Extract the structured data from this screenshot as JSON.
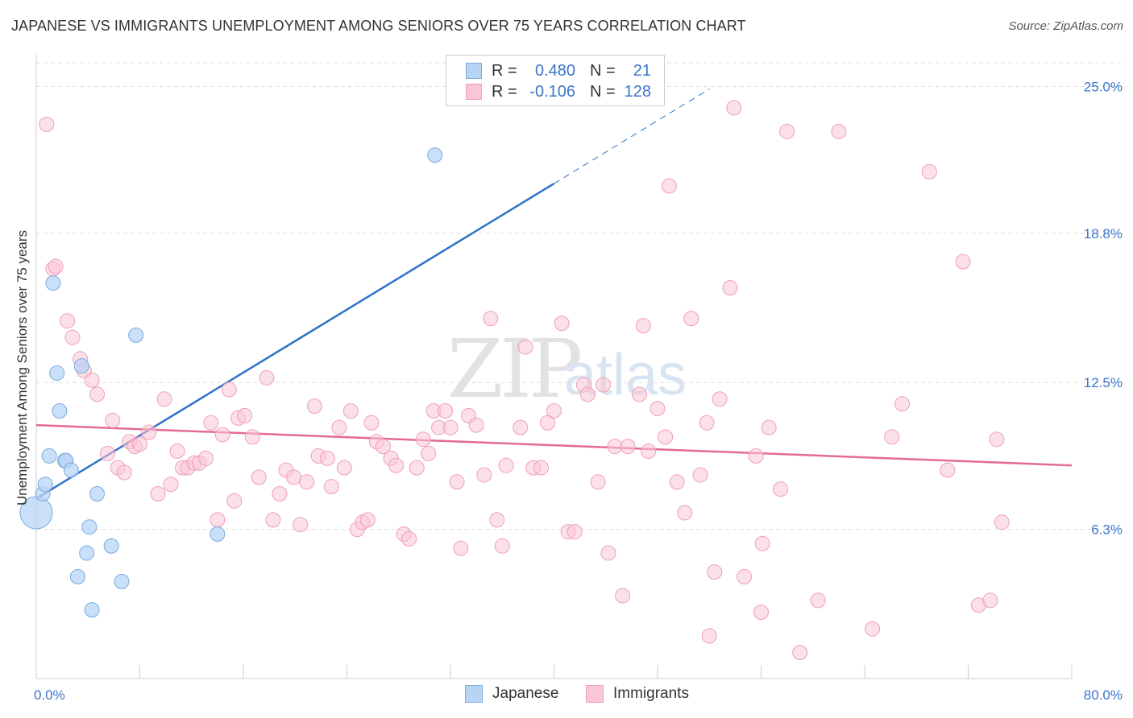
{
  "header": {
    "title": "JAPANESE VS IMMIGRANTS UNEMPLOYMENT AMONG SENIORS OVER 75 YEARS CORRELATION CHART",
    "source": "Source: ZipAtlas.com"
  },
  "watermark": {
    "zip": "ZIP",
    "atlas": "atlas"
  },
  "legend": {
    "rows": [
      {
        "r_label": "R =",
        "r_value": "0.480",
        "n_label": "N =",
        "n_value": "21"
      },
      {
        "r_label": "R =",
        "r_value": "-0.106",
        "n_label": "N =",
        "n_value": "128"
      }
    ]
  },
  "bottom_legend": {
    "japanese": "Japanese",
    "immigrants": "Immigrants"
  },
  "colors": {
    "japanese_fill": "#b8d4f5",
    "japanese_stroke": "#7aaae0",
    "japanese_line": "#2f72c9",
    "immigrants_fill": "#f9c6d5",
    "immigrants_stroke": "#ef9fb8",
    "immigrants_line": "#e46a95",
    "grid": "#dddddd",
    "tick_text": "#3b74c9"
  },
  "chart_data": {
    "type": "scatter",
    "title": "JAPANESE VS IMMIGRANTS UNEMPLOYMENT AMONG SENIORS OVER 75 YEARS CORRELATION CHART",
    "xlabel": "",
    "ylabel": "Unemployment Among Seniors over 75 years",
    "xlim": [
      0,
      80
    ],
    "ylim": [
      0,
      26
    ],
    "x_tick_labels": [
      "0.0%",
      "80.0%"
    ],
    "y_ticks": [
      25.0,
      18.8,
      12.5,
      6.3
    ],
    "y_tick_labels": [
      "25.0%",
      "18.8%",
      "12.5%",
      "6.3%"
    ],
    "grid": true,
    "series": [
      {
        "name": "Japanese",
        "r": 0.48,
        "n": 21,
        "trend": {
          "x0": 0,
          "y0": 7.6,
          "x1": 40,
          "y1": 20.9,
          "dash_to_x": 52
        },
        "points": [
          [
            0.0,
            7.0
          ],
          [
            0.5,
            7.8
          ],
          [
            0.7,
            8.2
          ],
          [
            1.0,
            9.4
          ],
          [
            1.3,
            16.7
          ],
          [
            1.6,
            12.9
          ],
          [
            1.8,
            11.3
          ],
          [
            2.2,
            9.2
          ],
          [
            2.3,
            9.2
          ],
          [
            2.7,
            8.8
          ],
          [
            3.2,
            4.3
          ],
          [
            3.5,
            13.2
          ],
          [
            3.9,
            5.3
          ],
          [
            4.1,
            6.4
          ],
          [
            4.3,
            2.9
          ],
          [
            4.7,
            7.8
          ],
          [
            5.8,
            5.6
          ],
          [
            6.6,
            4.1
          ],
          [
            7.7,
            14.5
          ],
          [
            14.0,
            6.1
          ],
          [
            30.8,
            22.1
          ]
        ]
      },
      {
        "name": "Immigrants",
        "r": -0.106,
        "n": 128,
        "trend": {
          "x0": 0,
          "y0": 10.7,
          "x1": 80,
          "y1": 9.0
        },
        "points": [
          [
            0.8,
            23.4
          ],
          [
            1.3,
            17.3
          ],
          [
            1.5,
            17.4
          ],
          [
            2.4,
            15.1
          ],
          [
            2.8,
            14.4
          ],
          [
            3.4,
            13.5
          ],
          [
            3.7,
            13.0
          ],
          [
            4.3,
            12.6
          ],
          [
            4.7,
            12.0
          ],
          [
            5.9,
            10.9
          ],
          [
            5.5,
            9.5
          ],
          [
            6.3,
            8.9
          ],
          [
            6.8,
            8.7
          ],
          [
            7.2,
            10.0
          ],
          [
            7.6,
            9.8
          ],
          [
            8.0,
            9.9
          ],
          [
            8.7,
            10.4
          ],
          [
            9.4,
            7.8
          ],
          [
            9.9,
            11.8
          ],
          [
            10.4,
            8.2
          ],
          [
            10.9,
            9.6
          ],
          [
            11.3,
            8.9
          ],
          [
            11.7,
            8.9
          ],
          [
            12.2,
            9.1
          ],
          [
            12.6,
            9.1
          ],
          [
            13.1,
            9.3
          ],
          [
            13.5,
            10.8
          ],
          [
            14.0,
            6.7
          ],
          [
            14.4,
            10.3
          ],
          [
            14.9,
            12.2
          ],
          [
            15.3,
            7.5
          ],
          [
            15.6,
            11.0
          ],
          [
            16.1,
            11.1
          ],
          [
            16.7,
            10.2
          ],
          [
            17.2,
            8.5
          ],
          [
            17.8,
            12.7
          ],
          [
            18.3,
            6.7
          ],
          [
            18.8,
            7.8
          ],
          [
            19.3,
            8.8
          ],
          [
            19.9,
            8.5
          ],
          [
            20.4,
            6.5
          ],
          [
            20.9,
            8.3
          ],
          [
            21.5,
            11.5
          ],
          [
            21.8,
            9.4
          ],
          [
            22.5,
            9.3
          ],
          [
            22.8,
            8.1
          ],
          [
            23.4,
            10.6
          ],
          [
            23.8,
            8.9
          ],
          [
            24.3,
            11.3
          ],
          [
            24.8,
            6.3
          ],
          [
            25.2,
            6.6
          ],
          [
            25.6,
            6.7
          ],
          [
            25.9,
            10.8
          ],
          [
            26.3,
            10.0
          ],
          [
            26.8,
            9.8
          ],
          [
            27.4,
            9.3
          ],
          [
            27.8,
            9.0
          ],
          [
            28.4,
            6.1
          ],
          [
            28.8,
            5.9
          ],
          [
            29.4,
            8.9
          ],
          [
            29.9,
            10.1
          ],
          [
            30.3,
            9.5
          ],
          [
            30.7,
            11.3
          ],
          [
            31.1,
            10.6
          ],
          [
            31.6,
            11.3
          ],
          [
            32.0,
            10.6
          ],
          [
            32.5,
            8.3
          ],
          [
            32.8,
            5.5
          ],
          [
            33.4,
            11.1
          ],
          [
            34.0,
            10.7
          ],
          [
            34.6,
            8.6
          ],
          [
            35.1,
            15.2
          ],
          [
            35.6,
            6.7
          ],
          [
            36.0,
            5.6
          ],
          [
            36.3,
            9.0
          ],
          [
            37.4,
            10.6
          ],
          [
            37.8,
            14.0
          ],
          [
            38.4,
            8.9
          ],
          [
            39.0,
            8.9
          ],
          [
            39.5,
            10.8
          ],
          [
            40.0,
            11.3
          ],
          [
            40.6,
            15.0
          ],
          [
            41.1,
            6.2
          ],
          [
            41.6,
            6.2
          ],
          [
            42.3,
            12.4
          ],
          [
            42.6,
            12.0
          ],
          [
            43.4,
            8.3
          ],
          [
            43.8,
            12.4
          ],
          [
            44.2,
            5.3
          ],
          [
            44.7,
            9.8
          ],
          [
            45.3,
            3.5
          ],
          [
            45.7,
            9.8
          ],
          [
            46.6,
            12.0
          ],
          [
            46.9,
            14.9
          ],
          [
            47.3,
            9.6
          ],
          [
            48.0,
            11.4
          ],
          [
            48.6,
            10.2
          ],
          [
            48.9,
            20.8
          ],
          [
            49.5,
            8.3
          ],
          [
            50.1,
            7.0
          ],
          [
            50.6,
            15.2
          ],
          [
            51.3,
            8.6
          ],
          [
            51.8,
            10.8
          ],
          [
            52.0,
            1.8
          ],
          [
            52.4,
            4.5
          ],
          [
            52.8,
            11.8
          ],
          [
            53.6,
            16.5
          ],
          [
            53.9,
            24.1
          ],
          [
            54.7,
            4.3
          ],
          [
            55.6,
            9.4
          ],
          [
            56.0,
            2.8
          ],
          [
            56.6,
            10.6
          ],
          [
            57.5,
            8.0
          ],
          [
            58.0,
            23.1
          ],
          [
            59.0,
            1.1
          ],
          [
            60.4,
            3.3
          ],
          [
            62.0,
            23.1
          ],
          [
            64.6,
            2.1
          ],
          [
            66.1,
            10.2
          ],
          [
            66.9,
            11.6
          ],
          [
            69.0,
            21.4
          ],
          [
            70.4,
            8.8
          ],
          [
            71.6,
            17.6
          ],
          [
            72.8,
            3.1
          ],
          [
            73.7,
            3.3
          ],
          [
            74.2,
            10.1
          ],
          [
            74.6,
            6.6
          ],
          [
            56.1,
            5.7
          ]
        ]
      }
    ]
  }
}
